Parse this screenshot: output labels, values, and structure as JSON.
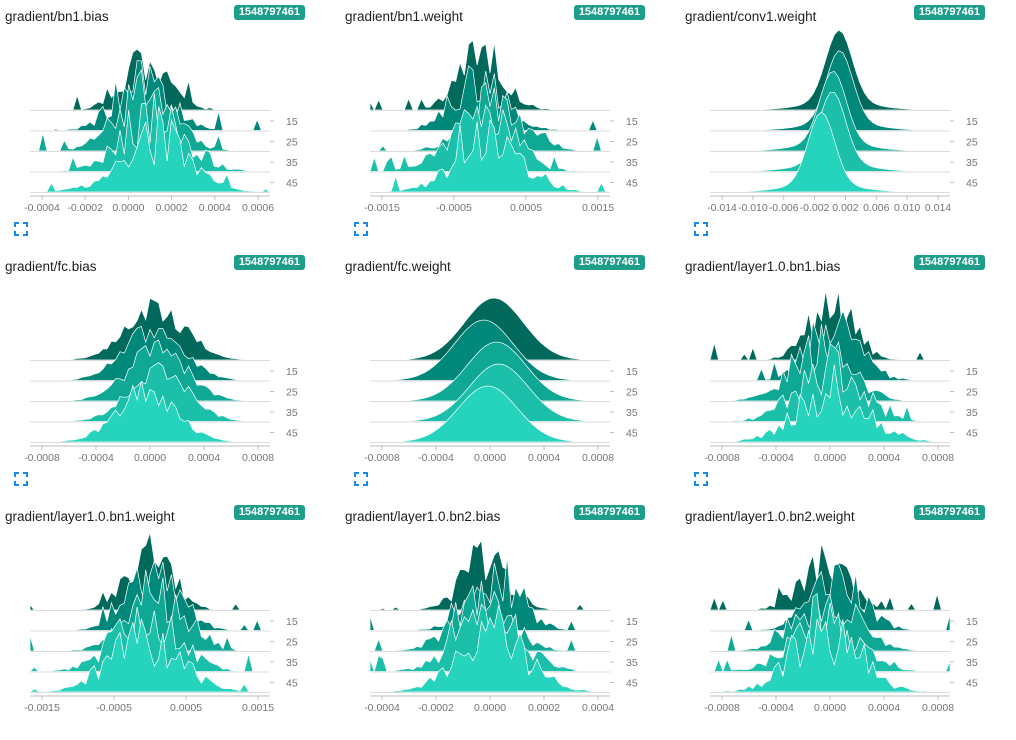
{
  "colors": {
    "badge": "#1e9e8a",
    "step_fills": [
      "#00695c",
      "#00897b",
      "#0fa894",
      "#1cbfa9",
      "#26d3bd"
    ],
    "expand_icon": "#1a8ae8"
  },
  "step_labels": [
    "15",
    "25",
    "35",
    "45"
  ],
  "cards": [
    {
      "title": "gradient/bn1.bias",
      "run": "1548797461",
      "x_ticks": [
        "-0.0004",
        "-0.0002",
        "0.0000",
        "0.0002",
        "0.0004",
        "0.0006"
      ],
      "shape": "spiky"
    },
    {
      "title": "gradient/bn1.weight",
      "run": "1548797461",
      "x_ticks": [
        "-0.0015",
        "-0.0005",
        "0.0005",
        "0.0015"
      ],
      "shape": "spiky"
    },
    {
      "title": "gradient/conv1.weight",
      "run": "1548797461",
      "x_ticks": [
        "-0.014",
        "-0.010",
        "-0.006",
        "-0.002",
        "0.002",
        "0.006",
        "0.010",
        "0.014"
      ],
      "shape": "peaked"
    },
    {
      "title": "gradient/fc.bias",
      "run": "1548797461",
      "x_ticks": [
        "-0.0008",
        "-0.0004",
        "0.0000",
        "0.0004",
        "0.0008"
      ],
      "shape": "rough"
    },
    {
      "title": "gradient/fc.weight",
      "run": "1548797461",
      "x_ticks": [
        "-0.0008",
        "-0.0004",
        "0.0000",
        "0.0004",
        "0.0008"
      ],
      "shape": "smooth"
    },
    {
      "title": "gradient/layer1.0.bn1.bias",
      "run": "1548797461",
      "x_ticks": [
        "-0.0008",
        "-0.0004",
        "0.0000",
        "0.0004",
        "0.0008"
      ],
      "shape": "spiky"
    },
    {
      "title": "gradient/layer1.0.bn1.weight",
      "run": "1548797461",
      "x_ticks": [
        "-0.0015",
        "-0.0005",
        "0.0005",
        "0.0015"
      ],
      "shape": "spiky"
    },
    {
      "title": "gradient/layer1.0.bn2.bias",
      "run": "1548797461",
      "x_ticks": [
        "-0.0004",
        "-0.0002",
        "0.0000",
        "0.0002",
        "0.0004"
      ],
      "shape": "spiky"
    },
    {
      "title": "gradient/layer1.0.bn2.weight",
      "run": "1548797461",
      "x_ticks": [
        "-0.0008",
        "-0.0004",
        "0.0000",
        "0.0004",
        "0.0008"
      ],
      "shape": "spiky"
    }
  ]
}
